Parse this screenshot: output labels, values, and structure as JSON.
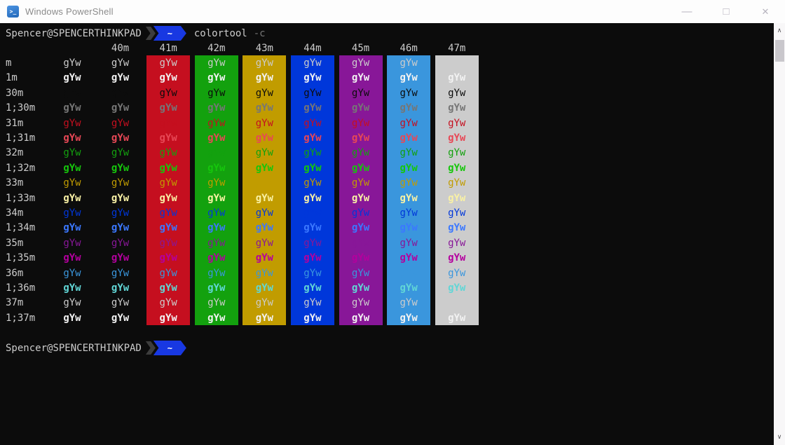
{
  "titlebar": {
    "title": "Windows PowerShell",
    "icon_glyph": ">_",
    "controls": {
      "minimize": "—",
      "maximize": "□",
      "close": "✕"
    }
  },
  "palette": {
    "terminal_background": "#0C0C0C",
    "terminal_foreground": "#CCCCCC",
    "titlebar_background": "#FDFDFD",
    "prompt_chevron_dark": "#3D3D3D",
    "prompt_segment_blue": "#1838E2",
    "scrollbar_track": "#F8F7F8",
    "scrollbar_thumb": "#C9C7CC"
  },
  "prompt_top": {
    "user": "Spencer@SPENCERTHINKPAD",
    "path": "~",
    "command": "colortool",
    "flag": "-c"
  },
  "prompt_bottom": {
    "user": "Spencer@SPENCERTHINKPAD",
    "path": "~"
  },
  "color_table": {
    "cell_text": "gYw",
    "columns": [
      {
        "header": "",
        "bg": ""
      },
      {
        "header": "40m",
        "bg": "#0C0C0C"
      },
      {
        "header": "41m",
        "bg": "#C50F1F"
      },
      {
        "header": "42m",
        "bg": "#13A10E"
      },
      {
        "header": "43m",
        "bg": "#C19C00"
      },
      {
        "header": "44m",
        "bg": "#0037DA"
      },
      {
        "header": "45m",
        "bg": "#881798"
      },
      {
        "header": "46m",
        "bg": "#3A96DD"
      },
      {
        "header": "47m",
        "bg": "#CCCCCC"
      }
    ],
    "rows": [
      {
        "label": "m",
        "fg": "#CCCCCC",
        "bold": false
      },
      {
        "label": "1m",
        "fg": "#F2F2F2",
        "bold": true
      },
      {
        "label": "30m",
        "fg": "#0C0C0C",
        "bold": false
      },
      {
        "label": "1;30m",
        "fg": "#767676",
        "bold": true
      },
      {
        "label": "31m",
        "fg": "#C50F1F",
        "bold": false
      },
      {
        "label": "1;31m",
        "fg": "#E74856",
        "bold": true
      },
      {
        "label": "32m",
        "fg": "#13A10E",
        "bold": false
      },
      {
        "label": "1;32m",
        "fg": "#16C60C",
        "bold": true
      },
      {
        "label": "33m",
        "fg": "#C19C00",
        "bold": false
      },
      {
        "label": "1;33m",
        "fg": "#F9F1A5",
        "bold": true
      },
      {
        "label": "34m",
        "fg": "#0037DA",
        "bold": false
      },
      {
        "label": "1;34m",
        "fg": "#3B78FF",
        "bold": true
      },
      {
        "label": "35m",
        "fg": "#881798",
        "bold": false
      },
      {
        "label": "1;35m",
        "fg": "#B4009E",
        "bold": true
      },
      {
        "label": "36m",
        "fg": "#3A96DD",
        "bold": false
      },
      {
        "label": "1;36m",
        "fg": "#61D6D6",
        "bold": true
      },
      {
        "label": "37m",
        "fg": "#CCCCCC",
        "bold": false
      },
      {
        "label": "1;37m",
        "fg": "#F2F2F2",
        "bold": true
      }
    ]
  },
  "scrollbar": {
    "up_glyph": "∧",
    "down_glyph": "∨"
  }
}
